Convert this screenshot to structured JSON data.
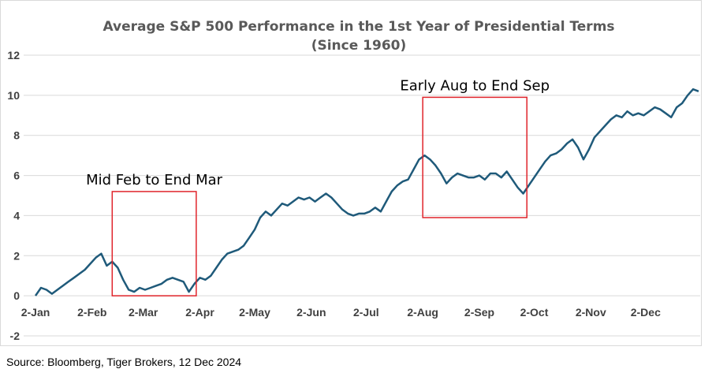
{
  "chart_data": {
    "type": "line",
    "title": "Average S&P 500 Performance in the 1st Year of Presidential Terms",
    "subtitle": "(Since 1960)",
    "ylim": [
      -2,
      12
    ],
    "y_ticks": [
      -2,
      0,
      2,
      4,
      6,
      8,
      10,
      12
    ],
    "x_ticks": [
      "2-Jan",
      "2-Feb",
      "2-Mar",
      "2-Apr",
      "2-May",
      "2-Jun",
      "2-Jul",
      "2-Aug",
      "2-Sep",
      "2-Oct",
      "2-Nov",
      "2-Dec"
    ],
    "grid": "horizontal",
    "legend": "none",
    "line_color": "#1f5a7a",
    "box_color": "#e0242b",
    "series": [
      {
        "points": [
          [
            "2-Jan",
            0.0
          ],
          [
            "5-Jan",
            0.4
          ],
          [
            "8-Jan",
            0.3
          ],
          [
            "11-Jan",
            0.1
          ],
          [
            "14-Jan",
            0.3
          ],
          [
            "17-Jan",
            0.5
          ],
          [
            "20-Jan",
            0.7
          ],
          [
            "23-Jan",
            0.9
          ],
          [
            "26-Jan",
            1.1
          ],
          [
            "29-Jan",
            1.3
          ],
          [
            "1-Feb",
            1.6
          ],
          [
            "4-Feb",
            1.9
          ],
          [
            "7-Feb",
            2.1
          ],
          [
            "10-Feb",
            1.5
          ],
          [
            "13-Feb",
            1.7
          ],
          [
            "16-Feb",
            1.4
          ],
          [
            "19-Feb",
            0.8
          ],
          [
            "22-Feb",
            0.3
          ],
          [
            "25-Feb",
            0.2
          ],
          [
            "28-Feb",
            0.4
          ],
          [
            "3-Mar",
            0.3
          ],
          [
            "6-Mar",
            0.4
          ],
          [
            "9-Mar",
            0.5
          ],
          [
            "12-Mar",
            0.6
          ],
          [
            "15-Mar",
            0.8
          ],
          [
            "18-Mar",
            0.9
          ],
          [
            "21-Mar",
            0.8
          ],
          [
            "24-Mar",
            0.7
          ],
          [
            "27-Mar",
            0.2
          ],
          [
            "30-Mar",
            0.6
          ],
          [
            "2-Apr",
            0.9
          ],
          [
            "5-Apr",
            0.8
          ],
          [
            "8-Apr",
            1.0
          ],
          [
            "11-Apr",
            1.4
          ],
          [
            "14-Apr",
            1.8
          ],
          [
            "17-Apr",
            2.1
          ],
          [
            "20-Apr",
            2.2
          ],
          [
            "23-Apr",
            2.3
          ],
          [
            "26-Apr",
            2.5
          ],
          [
            "29-Apr",
            2.9
          ],
          [
            "2-May",
            3.3
          ],
          [
            "5-May",
            3.9
          ],
          [
            "8-May",
            4.2
          ],
          [
            "11-May",
            4.0
          ],
          [
            "14-May",
            4.3
          ],
          [
            "17-May",
            4.6
          ],
          [
            "20-May",
            4.5
          ],
          [
            "23-May",
            4.7
          ],
          [
            "26-May",
            4.9
          ],
          [
            "29-May",
            4.8
          ],
          [
            "1-Jun",
            4.9
          ],
          [
            "4-Jun",
            4.7
          ],
          [
            "7-Jun",
            4.9
          ],
          [
            "10-Jun",
            5.1
          ],
          [
            "13-Jun",
            4.9
          ],
          [
            "16-Jun",
            4.6
          ],
          [
            "19-Jun",
            4.3
          ],
          [
            "22-Jun",
            4.1
          ],
          [
            "25-Jun",
            4.0
          ],
          [
            "28-Jun",
            4.1
          ],
          [
            "1-Jul",
            4.1
          ],
          [
            "4-Jul",
            4.2
          ],
          [
            "7-Jul",
            4.4
          ],
          [
            "10-Jul",
            4.2
          ],
          [
            "13-Jul",
            4.7
          ],
          [
            "16-Jul",
            5.2
          ],
          [
            "19-Jul",
            5.5
          ],
          [
            "22-Jul",
            5.7
          ],
          [
            "25-Jul",
            5.8
          ],
          [
            "28-Jul",
            6.3
          ],
          [
            "31-Jul",
            6.8
          ],
          [
            "3-Aug",
            7.0
          ],
          [
            "6-Aug",
            6.8
          ],
          [
            "9-Aug",
            6.5
          ],
          [
            "12-Aug",
            6.1
          ],
          [
            "15-Aug",
            5.6
          ],
          [
            "18-Aug",
            5.9
          ],
          [
            "21-Aug",
            6.1
          ],
          [
            "24-Aug",
            6.0
          ],
          [
            "27-Aug",
            5.9
          ],
          [
            "30-Aug",
            5.9
          ],
          [
            "2-Sep",
            6.0
          ],
          [
            "5-Sep",
            5.8
          ],
          [
            "8-Sep",
            6.1
          ],
          [
            "11-Sep",
            6.1
          ],
          [
            "14-Sep",
            5.9
          ],
          [
            "17-Sep",
            6.2
          ],
          [
            "20-Sep",
            5.8
          ],
          [
            "23-Sep",
            5.4
          ],
          [
            "26-Sep",
            5.1
          ],
          [
            "29-Sep",
            5.5
          ],
          [
            "2-Oct",
            5.9
          ],
          [
            "5-Oct",
            6.3
          ],
          [
            "8-Oct",
            6.7
          ],
          [
            "11-Oct",
            7.0
          ],
          [
            "14-Oct",
            7.1
          ],
          [
            "17-Oct",
            7.3
          ],
          [
            "20-Oct",
            7.6
          ],
          [
            "23-Oct",
            7.8
          ],
          [
            "26-Oct",
            7.4
          ],
          [
            "29-Oct",
            6.8
          ],
          [
            "1-Nov",
            7.3
          ],
          [
            "4-Nov",
            7.9
          ],
          [
            "7-Nov",
            8.2
          ],
          [
            "10-Nov",
            8.5
          ],
          [
            "13-Nov",
            8.8
          ],
          [
            "16-Nov",
            9.0
          ],
          [
            "19-Nov",
            8.9
          ],
          [
            "22-Nov",
            9.2
          ],
          [
            "25-Nov",
            9.0
          ],
          [
            "28-Nov",
            9.1
          ],
          [
            "1-Dec",
            9.0
          ],
          [
            "4-Dec",
            9.2
          ],
          [
            "7-Dec",
            9.4
          ],
          [
            "10-Dec",
            9.3
          ],
          [
            "13-Dec",
            9.1
          ],
          [
            "16-Dec",
            8.9
          ],
          [
            "19-Dec",
            9.4
          ],
          [
            "22-Dec",
            9.6
          ],
          [
            "25-Dec",
            10.0
          ],
          [
            "28-Dec",
            10.3
          ],
          [
            "31-Dec",
            10.2
          ]
        ]
      }
    ],
    "annotations": [
      {
        "label": "Mid Feb to End Mar",
        "from": "13-Feb",
        "to": "31-Mar",
        "ymin": 0.0,
        "ymax": 5.2
      },
      {
        "label": "Early Aug to End Sep",
        "from": "2-Aug",
        "to": "28-Sep",
        "ymin": 3.9,
        "ymax": 9.9
      }
    ]
  },
  "source": "Source: Bloomberg, Tiger Brokers, 12 Dec 2024"
}
